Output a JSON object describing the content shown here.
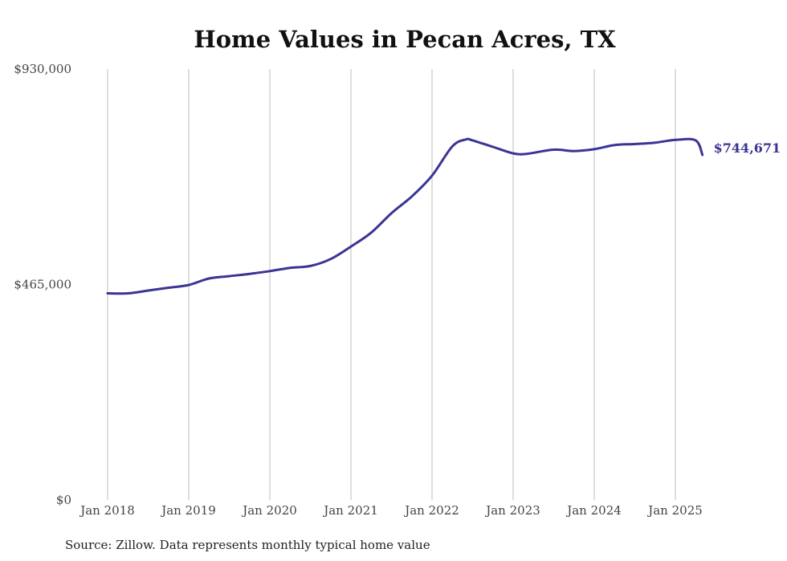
{
  "chart_data": {
    "type": "line",
    "title": "Home Values in Pecan Acres, TX",
    "xlabel": "",
    "ylabel": "",
    "source": "Source: Zillow. Data represents monthly typical home value",
    "ylim": [
      0,
      930000
    ],
    "yticks": [
      {
        "value": 0,
        "label": "$0"
      },
      {
        "value": 465000,
        "label": "$465,000"
      },
      {
        "value": 930000,
        "label": "$930,000"
      }
    ],
    "xticks": [
      {
        "value": "2018-01",
        "label": "Jan 2018"
      },
      {
        "value": "2019-01",
        "label": "Jan 2019"
      },
      {
        "value": "2020-01",
        "label": "Jan 2020"
      },
      {
        "value": "2021-01",
        "label": "Jan 2021"
      },
      {
        "value": "2022-01",
        "label": "Jan 2022"
      },
      {
        "value": "2023-01",
        "label": "Jan 2023"
      },
      {
        "value": "2024-01",
        "label": "Jan 2024"
      },
      {
        "value": "2025-01",
        "label": "Jan 2025"
      }
    ],
    "grid": "vertical",
    "end_label": "$744,671",
    "colors": {
      "line": "#3b3494",
      "end_label": "#3b3494",
      "grid": "#bdbdbd"
    },
    "series": [
      {
        "x": [
          "2018-01",
          "2018-04",
          "2018-07",
          "2018-10",
          "2019-01",
          "2019-04",
          "2019-07",
          "2019-10",
          "2020-01",
          "2020-04",
          "2020-07",
          "2020-10",
          "2021-01",
          "2021-04",
          "2021-07",
          "2021-10",
          "2022-01",
          "2022-04",
          "2022-06",
          "2022-07",
          "2022-10",
          "2023-01",
          "2023-03",
          "2023-07",
          "2023-10",
          "2024-01",
          "2024-04",
          "2024-07",
          "2024-10",
          "2025-01",
          "2025-04",
          "2025-05"
        ],
        "y": [
          446000,
          446000,
          452000,
          458000,
          464000,
          478000,
          483000,
          488000,
          494000,
          501000,
          505000,
          520000,
          547000,
          577000,
          619000,
          655000,
          700000,
          763000,
          778000,
          776000,
          762000,
          748000,
          747000,
          756000,
          753000,
          757000,
          766000,
          768000,
          771000,
          777000,
          776000,
          744671
        ]
      }
    ]
  }
}
